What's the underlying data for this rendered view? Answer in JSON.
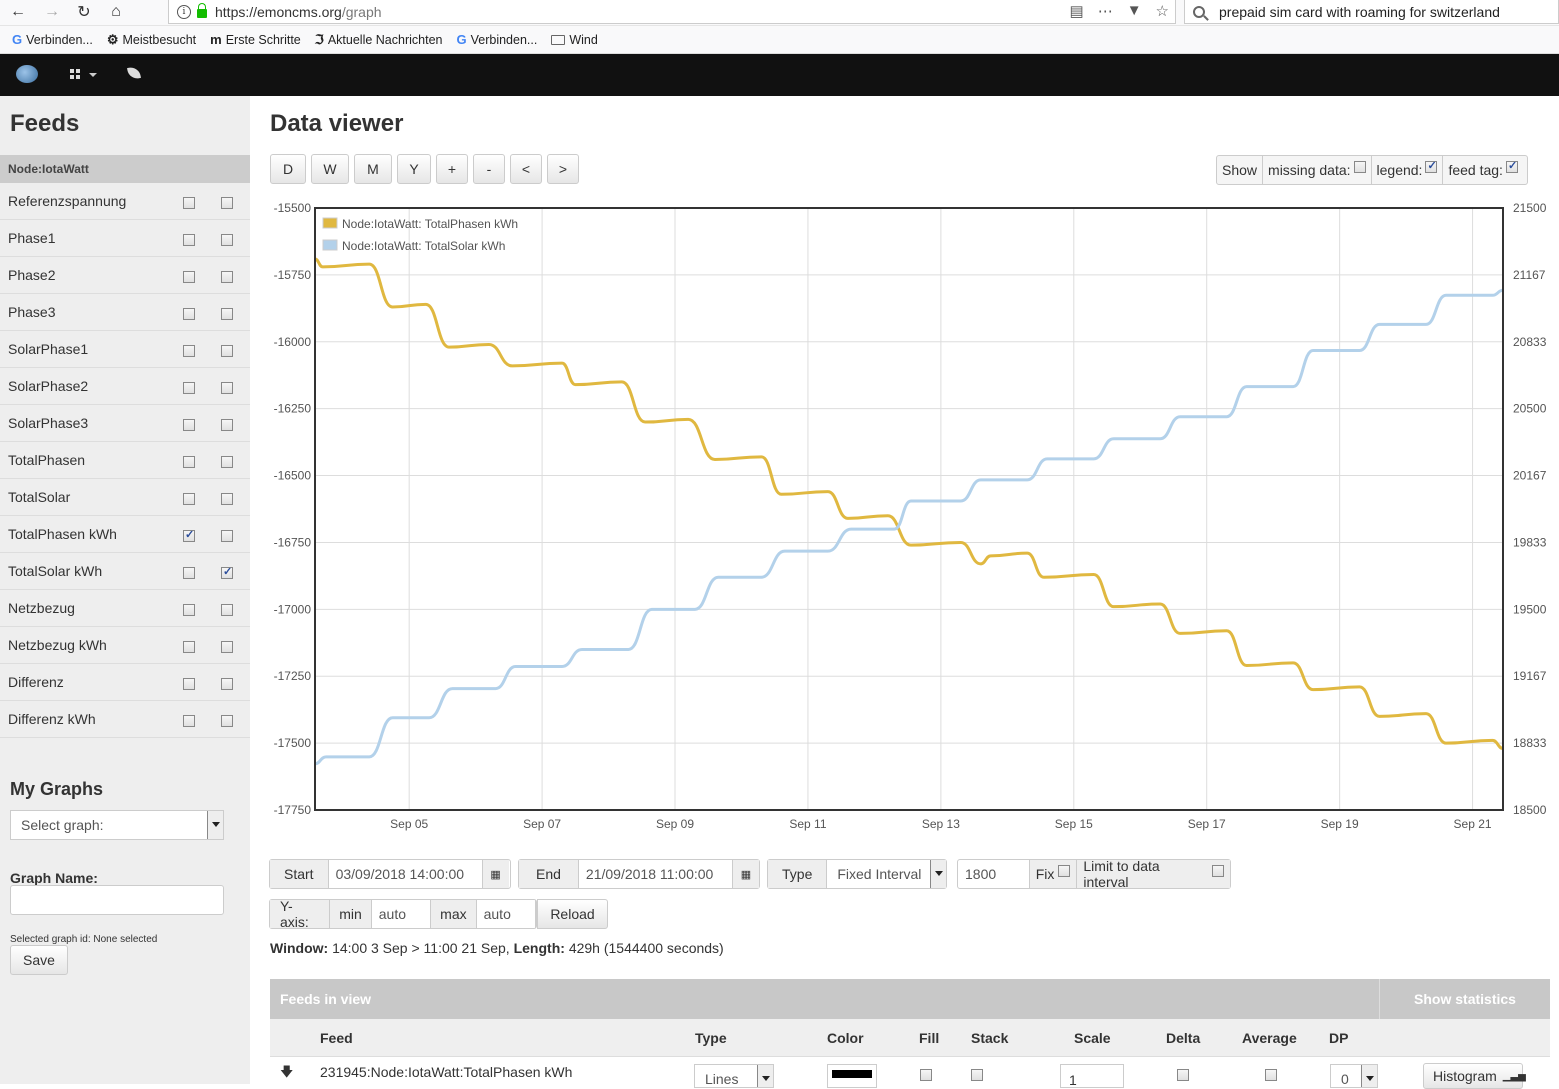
{
  "browser": {
    "url_host": "https://emoncms.org",
    "url_path": "/graph",
    "search_text": "prepaid sim card with roaming for  switzerland",
    "bookmarks": [
      "Verbinden...",
      "Meistbesucht",
      "Erste Schritte",
      "Aktuelle Nachrichten",
      "Verbinden...",
      "Wind"
    ]
  },
  "sidebar": {
    "title": "Feeds",
    "node": "Node:IotaWatt",
    "feeds": [
      {
        "name": "Referenzspannung",
        "left": false,
        "right": false
      },
      {
        "name": "Phase1",
        "left": false,
        "right": false
      },
      {
        "name": "Phase2",
        "left": false,
        "right": false
      },
      {
        "name": "Phase3",
        "left": false,
        "right": false
      },
      {
        "name": "SolarPhase1",
        "left": false,
        "right": false
      },
      {
        "name": "SolarPhase2",
        "left": false,
        "right": false
      },
      {
        "name": "SolarPhase3",
        "left": false,
        "right": false
      },
      {
        "name": "TotalPhasen",
        "left": false,
        "right": false
      },
      {
        "name": "TotalSolar",
        "left": false,
        "right": false
      },
      {
        "name": "TotalPhasen kWh",
        "left": true,
        "right": false
      },
      {
        "name": "TotalSolar kWh",
        "left": false,
        "right": true
      },
      {
        "name": "Netzbezug",
        "left": false,
        "right": false
      },
      {
        "name": "Netzbezug kWh",
        "left": false,
        "right": false
      },
      {
        "name": "Differenz",
        "left": false,
        "right": false
      },
      {
        "name": "Differenz kWh",
        "left": false,
        "right": false
      }
    ],
    "my_graphs": "My Graphs",
    "select_placeholder": "Select graph:",
    "graph_name_label": "Graph Name:",
    "graph_name_value": "",
    "selected_id": "Selected graph id: None selected",
    "save": "Save"
  },
  "main": {
    "title": "Data viewer",
    "range_buttons": [
      "D",
      "W",
      "M",
      "Y",
      "+",
      "-",
      "<",
      ">"
    ],
    "show_label": "Show",
    "missing_label": "missing data:",
    "legend_label": "legend:",
    "feedtag_label": "feed tag:",
    "show_missing": false,
    "show_legend": true,
    "show_feedtag": true,
    "start_label": "Start",
    "start_value": "03/09/2018 14:00:00",
    "end_label": "End",
    "end_value": "21/09/2018 11:00:00",
    "type_label": "Type",
    "type_value": "Fixed Interval",
    "interval_value": "1800",
    "fix_label": "Fix",
    "limit_label": "Limit to data interval",
    "yaxis_label": "Y-axis:",
    "min_label": "min",
    "min_value": "auto",
    "max_label": "max",
    "max_value": "auto",
    "reload": "Reload",
    "window_label": "Window:",
    "window_value": "14:00 3 Sep > 11:00 21 Sep,",
    "length_label": "Length:",
    "length_value": "429h (1544400 seconds)",
    "feeds_in_view": "Feeds in view",
    "show_statistics": "Show statistics",
    "table_headers": [
      "Feed",
      "Type",
      "Color",
      "Fill",
      "Stack",
      "Scale",
      "Delta",
      "Average",
      "DP"
    ],
    "row": {
      "feed": "231945:Node:IotaWatt:TotalPhasen kWh",
      "type": "Lines",
      "color": "#000000",
      "scale": "1",
      "dp": "0",
      "histogram": "Histogram"
    }
  },
  "chart_data": {
    "type": "line",
    "x_ticks": [
      "Sep 05",
      "Sep 07",
      "Sep 09",
      "Sep 11",
      "Sep 13",
      "Sep 15",
      "Sep 17",
      "Sep 19",
      "Sep 21"
    ],
    "y_left_ticks": [
      "-15500",
      "-15750",
      "-16000",
      "-16250",
      "-16500",
      "-16750",
      "-17000",
      "-17250",
      "-17500",
      "-17750"
    ],
    "y_right_ticks": [
      "21500",
      "21167",
      "20833",
      "20500",
      "20167",
      "19833",
      "19500",
      "19167",
      "18833",
      "18500"
    ],
    "y_left_range": [
      -17750,
      -15500
    ],
    "y_right_range": [
      18500,
      21500
    ],
    "x_range_days": [
      3.583,
      21.458
    ],
    "legend_position": "top-left",
    "grid": true,
    "series": [
      {
        "name": "Node:IotaWatt: TotalPhasen kWh",
        "color": "#e0b840",
        "axis": "left",
        "points": [
          [
            3.58,
            -15690
          ],
          [
            3.7,
            -15720
          ],
          [
            4.4,
            -15710
          ],
          [
            4.75,
            -15870
          ],
          [
            5.25,
            -15860
          ],
          [
            5.6,
            -16020
          ],
          [
            6.2,
            -16010
          ],
          [
            6.55,
            -16090
          ],
          [
            7.3,
            -16080
          ],
          [
            7.5,
            -16160
          ],
          [
            8.2,
            -16150
          ],
          [
            8.55,
            -16300
          ],
          [
            9.2,
            -16290
          ],
          [
            9.6,
            -16440
          ],
          [
            10.3,
            -16430
          ],
          [
            10.6,
            -16570
          ],
          [
            11.3,
            -16560
          ],
          [
            11.6,
            -16660
          ],
          [
            12.2,
            -16650
          ],
          [
            12.55,
            -16760
          ],
          [
            13.3,
            -16750
          ],
          [
            13.6,
            -16830
          ],
          [
            13.75,
            -16800
          ],
          [
            14.3,
            -16790
          ],
          [
            14.55,
            -16880
          ],
          [
            15.3,
            -16870
          ],
          [
            15.6,
            -16990
          ],
          [
            16.3,
            -16980
          ],
          [
            16.6,
            -17090
          ],
          [
            17.3,
            -17080
          ],
          [
            17.6,
            -17210
          ],
          [
            18.3,
            -17200
          ],
          [
            18.6,
            -17300
          ],
          [
            19.3,
            -17290
          ],
          [
            19.6,
            -17400
          ],
          [
            20.3,
            -17390
          ],
          [
            20.6,
            -17500
          ],
          [
            21.3,
            -17490
          ],
          [
            21.46,
            -17520
          ]
        ]
      },
      {
        "name": "Node:IotaWatt: TotalSolar kWh",
        "color": "#b3d1ea",
        "axis": "right",
        "points": [
          [
            3.58,
            18730
          ],
          [
            3.75,
            18765
          ],
          [
            4.4,
            18765
          ],
          [
            4.75,
            18960
          ],
          [
            5.3,
            18960
          ],
          [
            5.65,
            19105
          ],
          [
            6.3,
            19105
          ],
          [
            6.6,
            19215
          ],
          [
            7.3,
            19215
          ],
          [
            7.6,
            19300
          ],
          [
            8.3,
            19300
          ],
          [
            8.65,
            19500
          ],
          [
            9.3,
            19500
          ],
          [
            9.65,
            19660
          ],
          [
            10.3,
            19660
          ],
          [
            10.65,
            19790
          ],
          [
            11.3,
            19790
          ],
          [
            11.65,
            19900
          ],
          [
            12.3,
            19900
          ],
          [
            12.55,
            20040
          ],
          [
            13.3,
            20040
          ],
          [
            13.6,
            20145
          ],
          [
            14.3,
            20145
          ],
          [
            14.6,
            20250
          ],
          [
            15.3,
            20250
          ],
          [
            15.6,
            20350
          ],
          [
            16.3,
            20350
          ],
          [
            16.6,
            20460
          ],
          [
            17.3,
            20460
          ],
          [
            17.6,
            20610
          ],
          [
            18.3,
            20610
          ],
          [
            18.6,
            20790
          ],
          [
            19.3,
            20790
          ],
          [
            19.6,
            20920
          ],
          [
            20.3,
            20920
          ],
          [
            20.6,
            21065
          ],
          [
            21.3,
            21065
          ],
          [
            21.46,
            21090
          ]
        ]
      }
    ]
  }
}
